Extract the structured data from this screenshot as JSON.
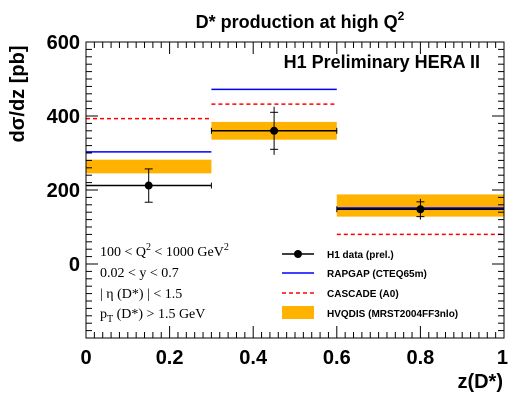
{
  "chart_data": {
    "type": "line",
    "title": "D* production at high Q²",
    "title_main": "D* production at high Q",
    "title_sup": "2",
    "experiment_label": "H1 Preliminary HERA II",
    "xlabel": "z(D*)",
    "ylabel": "dσ/dz [pb]",
    "xlim": [
      0,
      1
    ],
    "ylim": [
      -200,
      600
    ],
    "x_ticks": [
      {
        "value": 0,
        "label": "0"
      },
      {
        "value": 0.2,
        "label": "0.2"
      },
      {
        "value": 0.4,
        "label": "0.4"
      },
      {
        "value": 0.6,
        "label": "0.6"
      },
      {
        "value": 0.8,
        "label": "0.8"
      },
      {
        "value": 1,
        "label": "1"
      }
    ],
    "y_ticks": [
      {
        "value": 0,
        "label": "0"
      },
      {
        "value": 200,
        "label": "200"
      },
      {
        "value": 400,
        "label": "400"
      },
      {
        "value": 600,
        "label": "600"
      }
    ],
    "bins": [
      [
        0,
        0.3
      ],
      [
        0.3,
        0.6
      ],
      [
        0.6,
        1.0
      ]
    ],
    "data_points": {
      "name": "H1 data (prel.)",
      "color": "#000000",
      "x": [
        0.15,
        0.45,
        0.8
      ],
      "y": [
        212,
        360,
        148
      ],
      "stat_err": [
        45,
        50,
        20
      ],
      "tot_err": [
        45,
        65,
        28
      ]
    },
    "series": [
      {
        "name": "RAPGAP (CTEQ65m)",
        "color": "#0000ff",
        "style": "solid",
        "values": [
          303,
          472,
          150
        ]
      },
      {
        "name": "CASCADE (A0)",
        "color": "#ff0000",
        "style": "dashed",
        "values": [
          393,
          432,
          80
        ]
      },
      {
        "name": "HVQDIS (MRST2004FF3nlo)",
        "color": "#ffb300",
        "style": "band",
        "low": [
          245,
          336,
          128
        ],
        "high": [
          282,
          384,
          188
        ]
      }
    ],
    "cuts": [
      {
        "text": "100 < Q² < 1000 GeV²"
      },
      {
        "text": "0.02 < y < 0.7"
      },
      {
        "text": "| η (D*) | < 1.5"
      },
      {
        "text": "p_T (D*) > 1.5 GeV"
      }
    ],
    "legend_position": "bottom-right",
    "grid": false
  }
}
